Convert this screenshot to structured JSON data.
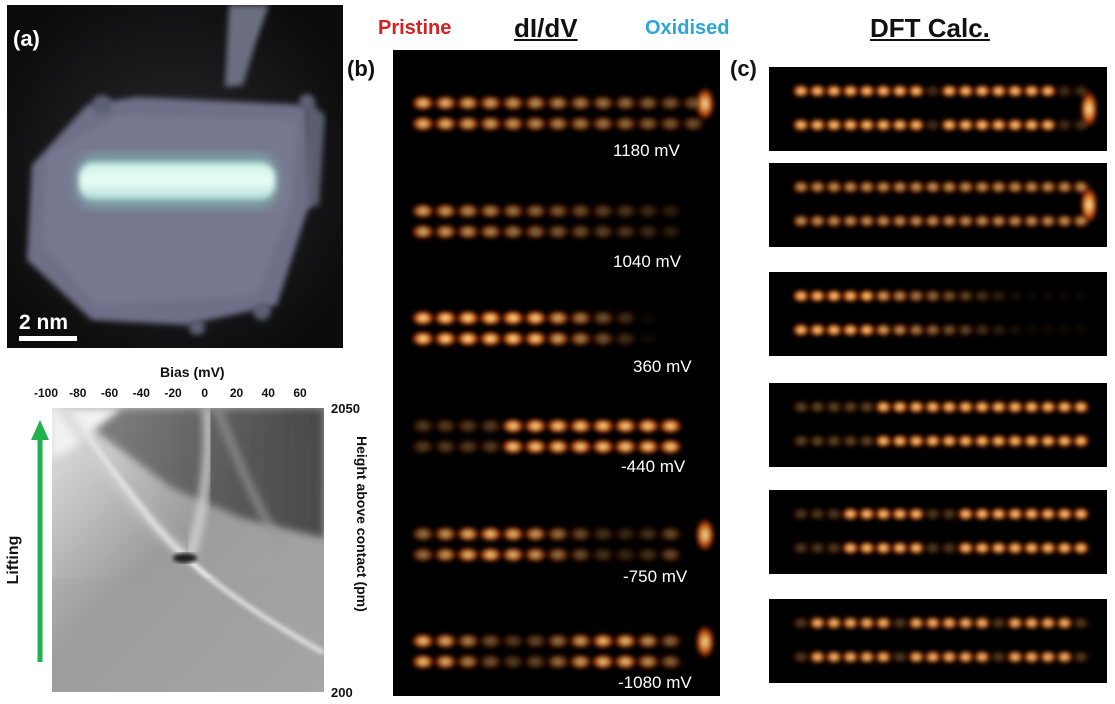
{
  "panels": {
    "a": {
      "label": "(a)",
      "scalebar": "2 nm"
    },
    "b": {
      "label": "(b)",
      "title": "dI/dV",
      "left_tag": "Pristine",
      "right_tag": "Oxidised",
      "biases": [
        "1180 mV",
        "1040 mV",
        "360 mV",
        "-440 mV",
        "-750 mV",
        "-1080 mV"
      ]
    },
    "c": {
      "label": "(c)",
      "title": "DFT Calc."
    }
  },
  "spectra": {
    "x_label": "Bias (mV)",
    "x_ticks": [
      "-100",
      "-80",
      "-60",
      "-40",
      "-20",
      "0",
      "20",
      "40",
      "60"
    ],
    "y_label": "Height above contact (pm)",
    "y_ticks": [
      "2050",
      "200"
    ],
    "arrow_label": "Lifting"
  },
  "colors": {
    "pristine": "#d42020",
    "oxidised": "#2aa7d8",
    "arrow": "#22b14c"
  }
}
